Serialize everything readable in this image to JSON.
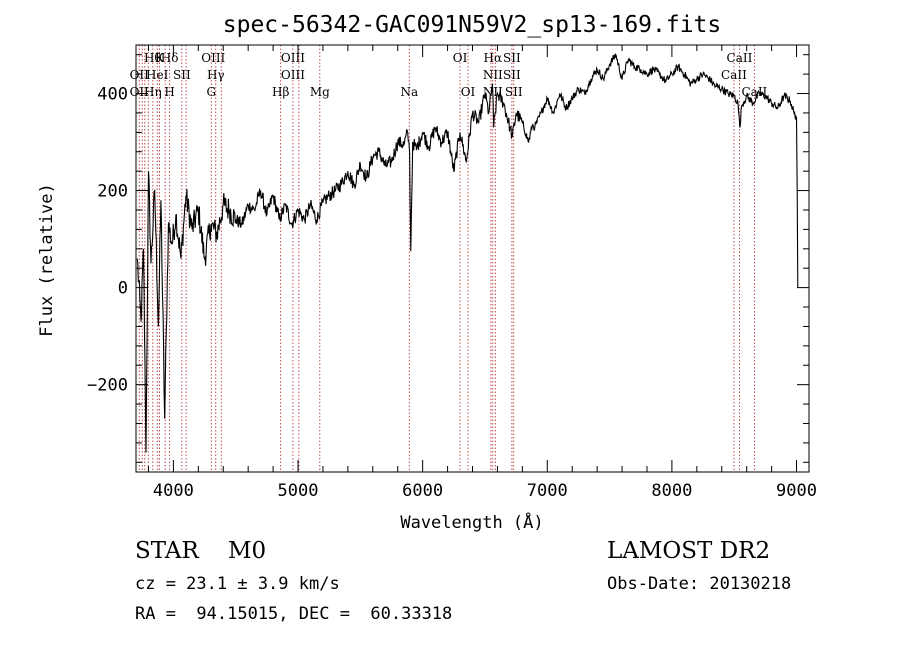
{
  "chart_data": {
    "type": "line",
    "title": "spec-56342-GAC091N59V2_sp13-169.fits",
    "xlabel": "Wavelength (Å)",
    "ylabel": "Flux (relative)",
    "xlim": [
      3700,
      9100
    ],
    "ylim": [
      -380,
      500
    ],
    "x_ticks": [
      4000,
      5000,
      6000,
      7000,
      8000,
      9000
    ],
    "x_tick_labels": [
      "4000",
      "5000",
      "6000",
      "7000",
      "8000",
      "9000"
    ],
    "y_ticks": [
      -200,
      0,
      200,
      400
    ],
    "y_tick_labels": [
      "−200",
      "0",
      "200",
      "400"
    ],
    "grid": false,
    "series": [
      {
        "color": "#000000",
        "x": [
          3710,
          3740,
          3760,
          3780,
          3800,
          3820,
          3850,
          3880,
          3900,
          3930,
          3960,
          3990,
          4020,
          4060,
          4100,
          4150,
          4200,
          4250,
          4300,
          4350,
          4400,
          4450,
          4500,
          4550,
          4600,
          4650,
          4700,
          4750,
          4800,
          4850,
          4900,
          4950,
          5000,
          5050,
          5100,
          5150,
          5200,
          5250,
          5300,
          5350,
          5400,
          5450,
          5500,
          5550,
          5600,
          5650,
          5700,
          5750,
          5800,
          5850,
          5880,
          5895,
          5905,
          5920,
          5950,
          6000,
          6050,
          6100,
          6150,
          6200,
          6250,
          6300,
          6350,
          6400,
          6450,
          6500,
          6530,
          6560,
          6570,
          6600,
          6650,
          6700,
          6720,
          6750,
          6800,
          6850,
          6880,
          6900,
          6950,
          7000,
          7050,
          7100,
          7150,
          7200,
          7250,
          7300,
          7350,
          7400,
          7450,
          7500,
          7550,
          7600,
          7650,
          7700,
          7750,
          7800,
          7850,
          7900,
          7950,
          8000,
          8050,
          8100,
          8150,
          8200,
          8250,
          8300,
          8350,
          8400,
          8450,
          8500,
          8530,
          8545,
          8560,
          8600,
          8650,
          8700,
          8750,
          8800,
          8850,
          8900,
          8950,
          8980,
          9000,
          9005,
          9010
        ],
        "y": [
          60,
          -70,
          80,
          -340,
          240,
          50,
          200,
          -80,
          180,
          -270,
          130,
          90,
          150,
          60,
          190,
          120,
          160,
          60,
          130,
          110,
          170,
          160,
          140,
          130,
          170,
          160,
          200,
          150,
          190,
          140,
          170,
          130,
          160,
          140,
          170,
          140,
          175,
          190,
          200,
          215,
          240,
          210,
          255,
          225,
          270,
          280,
          250,
          260,
          300,
          295,
          320,
          280,
          75,
          300,
          285,
          320,
          290,
          330,
          300,
          320,
          240,
          320,
          260,
          360,
          340,
          400,
          360,
          420,
          330,
          400,
          380,
          330,
          310,
          360,
          340,
          300,
          335,
          330,
          360,
          390,
          360,
          400,
          370,
          390,
          410,
          400,
          430,
          450,
          430,
          460,
          480,
          430,
          470,
          455,
          450,
          440,
          450,
          440,
          425,
          440,
          455,
          440,
          420,
          430,
          440,
          430,
          415,
          410,
          400,
          395,
          380,
          330,
          375,
          395,
          380,
          400,
          395,
          380,
          370,
          395,
          385,
          360,
          350,
          200,
          0
        ]
      }
    ],
    "line_labels_row1": [
      {
        "x": 3835,
        "label": "Hθ"
      },
      {
        "x": 3889,
        "label": "K"
      },
      {
        "x": 3970,
        "label": "Hδ"
      },
      {
        "x": 4320,
        "label": "OIII"
      },
      {
        "x": 4959,
        "label": "OIII"
      },
      {
        "x": 6300,
        "label": "OI"
      },
      {
        "x": 6563,
        "label": "Hα"
      },
      {
        "x": 6716,
        "label": "SII"
      },
      {
        "x": 8542,
        "label": "CaII"
      }
    ],
    "line_labels_row2": [
      {
        "x": 3726,
        "label": "OII"
      },
      {
        "x": 3870,
        "label": "HeI"
      },
      {
        "x": 4068,
        "label": "SII"
      },
      {
        "x": 4340,
        "label": "Hγ"
      },
      {
        "x": 4959,
        "label": "OIII"
      },
      {
        "x": 6563,
        "label": "NII"
      },
      {
        "x": 6716,
        "label": "SII"
      },
      {
        "x": 8498,
        "label": "CaII"
      }
    ],
    "line_labels_row3": [
      {
        "x": 3726,
        "label": "OII"
      },
      {
        "x": 3835,
        "label": "Hη"
      },
      {
        "x": 3970,
        "label": "H"
      },
      {
        "x": 4304,
        "label": "G"
      },
      {
        "x": 4861,
        "label": "Hβ"
      },
      {
        "x": 5175,
        "label": "Mg"
      },
      {
        "x": 5893,
        "label": "Na"
      },
      {
        "x": 6364,
        "label": "OI"
      },
      {
        "x": 6563,
        "label": "NII"
      },
      {
        "x": 6731,
        "label": "SII"
      },
      {
        "x": 8662,
        "label": "CaII"
      }
    ],
    "marker_lines_x": [
      3726,
      3750,
      3771,
      3798,
      3835,
      3870,
      3889,
      3934,
      3970,
      4068,
      4102,
      4304,
      4340,
      4384,
      4861,
      4959,
      5007,
      5175,
      5893,
      6300,
      6364,
      6548,
      6563,
      6583,
      6716,
      6731,
      8498,
      8542,
      8662
    ],
    "marker_color": "#b22222"
  },
  "footer": {
    "object_class": "STAR    M0",
    "survey": "LAMOST DR2",
    "cz": "cz = 23.1 ± 3.9 km/s",
    "obs_date": "Obs-Date: 20130218",
    "ra_dec": "RA =  94.15015, DEC =  60.33318"
  }
}
